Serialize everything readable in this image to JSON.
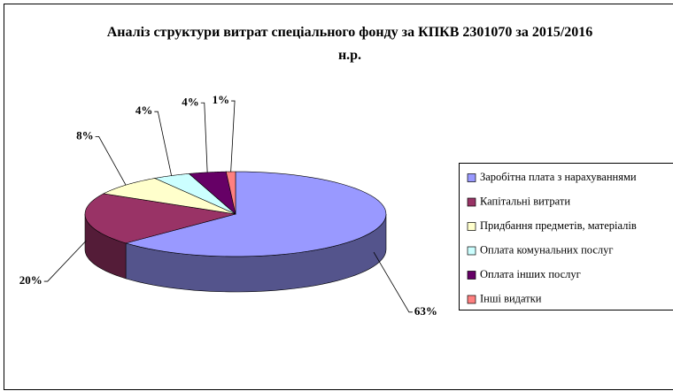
{
  "chart_data": {
    "type": "pie",
    "title": "Аналіз структури витрат спеціального фонду за КПКВ 2301070   за 2015/2016 н.р.",
    "categories": [
      "Заробітна плата з нарахуваннями",
      "Капітальні витрати",
      "Придбання предметів, матеріалів",
      "Оплата комунальних послуг",
      "Оплата інших послуг",
      "Інші видатки"
    ],
    "values": [
      63,
      20,
      8,
      4,
      4,
      1
    ],
    "value_labels": [
      "63%",
      "20%",
      "8%",
      "4%",
      "4%",
      "1%"
    ],
    "colors": [
      "#9999ff",
      "#993366",
      "#ffffcc",
      "#ccffff",
      "#660066",
      "#ff8080"
    ],
    "legend": "right"
  }
}
